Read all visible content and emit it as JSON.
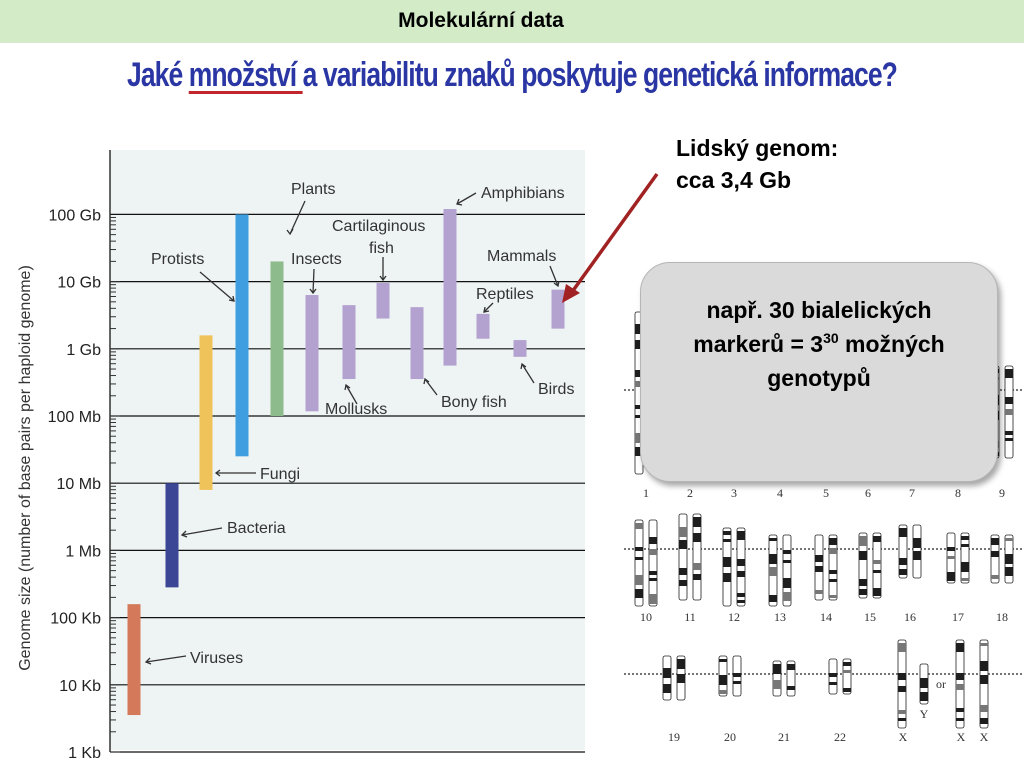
{
  "header": {
    "title": "Molekulární data"
  },
  "question": {
    "part1": "Jaké ",
    "underlined": "množství ",
    "part2": "a variabilitu znaků poskytuje genetická informace?"
  },
  "human_genome": {
    "line1": "Lidský genom:",
    "line2": "cca 3,4 Gb"
  },
  "callout": {
    "line1": "např. 30 bialelických",
    "line2_pre": "markerů = 3",
    "line2_sup": "30",
    "line2_post": " možných",
    "line3": "genotypů"
  },
  "chart_data": {
    "type": "bar",
    "ylabel": "Genome size (number of base pairs per haploid genome)",
    "y_scale": "log",
    "y_ticks": [
      "1 Kb",
      "10 Kb",
      "100 Kb",
      "1 Mb",
      "10 Mb",
      "100 Mb",
      "1 Gb",
      "10 Gb",
      "100 Gb"
    ],
    "ylim_log10_bp": [
      3,
      11.03
    ],
    "grid": true,
    "ranges": [
      {
        "name": "Viruses",
        "min_log10_bp": 3.55,
        "max_log10_bp": 5.2,
        "color": "#d47a5a"
      },
      {
        "name": "Bacteria",
        "min_log10_bp": 5.45,
        "max_log10_bp": 7.0,
        "color": "#3b4694"
      },
      {
        "name": "Fungi",
        "min_log10_bp": 6.9,
        "max_log10_bp": 9.2,
        "color": "#f0c35a"
      },
      {
        "name": "Protists",
        "min_log10_bp": 7.4,
        "max_log10_bp": 11.0,
        "color": "#3e9ee0"
      },
      {
        "name": "Plants",
        "min_log10_bp": 8.0,
        "max_log10_bp": 10.3,
        "color": "#8dbb8c"
      },
      {
        "name": "Insects",
        "min_log10_bp": 8.07,
        "max_log10_bp": 9.8,
        "color": "#b3a2d0"
      },
      {
        "name": "Mollusks",
        "min_log10_bp": 8.55,
        "max_log10_bp": 9.65,
        "color": "#b3a2d0"
      },
      {
        "name": "Cartilaginous fish",
        "min_log10_bp": 9.45,
        "max_log10_bp": 9.98,
        "color": "#b3a2d0"
      },
      {
        "name": "Bony fish",
        "min_log10_bp": 8.55,
        "max_log10_bp": 9.62,
        "color": "#b3a2d0"
      },
      {
        "name": "Amphibians",
        "min_log10_bp": 8.75,
        "max_log10_bp": 11.08,
        "color": "#b3a2d0"
      },
      {
        "name": "Reptiles",
        "min_log10_bp": 9.15,
        "max_log10_bp": 9.52,
        "color": "#b3a2d0"
      },
      {
        "name": "Birds",
        "min_log10_bp": 8.88,
        "max_log10_bp": 9.13,
        "color": "#b3a2d0"
      },
      {
        "name": "Mammals",
        "min_log10_bp": 9.3,
        "max_log10_bp": 9.88,
        "color": "#b3a2d0"
      }
    ],
    "annotations": [
      "Plants",
      "Amphibians",
      "Cartilaginous",
      "fish",
      "Protists",
      "Insects",
      "Mammals",
      "Reptiles",
      "Mollusks",
      "Bony fish",
      "Birds",
      "Fungi",
      "Bacteria",
      "Viruses"
    ]
  },
  "karyotype": {
    "labels": [
      "1",
      "2",
      "3",
      "4",
      "5",
      "6",
      "7",
      "8",
      "9",
      "10",
      "11",
      "12",
      "13",
      "14",
      "15",
      "16",
      "17",
      "18",
      "19",
      "20",
      "21",
      "22",
      "X",
      "Y",
      "or",
      "X",
      "X"
    ]
  },
  "colors": {
    "header_bg": "#d3ebc7",
    "question_text": "#2a36a3",
    "underline": "#c0262b",
    "arrow": "#a12222",
    "callout_bg": "#dadada"
  }
}
